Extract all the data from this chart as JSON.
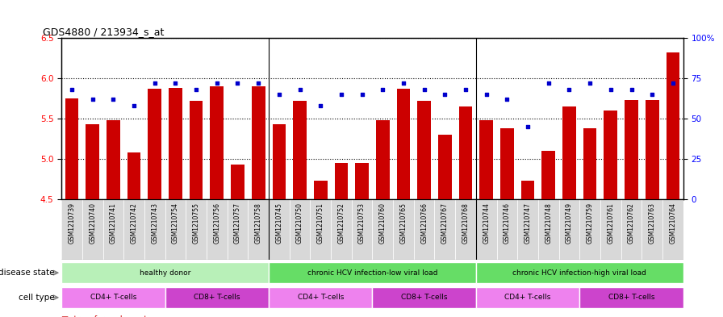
{
  "title": "GDS4880 / 213934_s_at",
  "samples": [
    "GSM1210739",
    "GSM1210740",
    "GSM1210741",
    "GSM1210742",
    "GSM1210743",
    "GSM1210754",
    "GSM1210755",
    "GSM1210756",
    "GSM1210757",
    "GSM1210758",
    "GSM1210745",
    "GSM1210750",
    "GSM1210751",
    "GSM1210752",
    "GSM1210753",
    "GSM1210760",
    "GSM1210765",
    "GSM1210766",
    "GSM1210767",
    "GSM1210768",
    "GSM1210744",
    "GSM1210746",
    "GSM1210747",
    "GSM1210748",
    "GSM1210749",
    "GSM1210759",
    "GSM1210761",
    "GSM1210762",
    "GSM1210763",
    "GSM1210764"
  ],
  "bar_values": [
    5.75,
    5.43,
    5.48,
    5.08,
    5.87,
    5.88,
    5.72,
    5.9,
    4.93,
    5.9,
    5.43,
    5.72,
    4.73,
    4.95,
    4.95,
    5.48,
    5.87,
    5.72,
    5.3,
    5.65,
    5.48,
    5.38,
    4.73,
    5.1,
    5.65,
    5.38,
    5.6,
    5.73,
    5.73,
    6.32
  ],
  "percentile_values": [
    68,
    62,
    62,
    58,
    72,
    72,
    68,
    72,
    72,
    72,
    65,
    68,
    58,
    65,
    65,
    68,
    72,
    68,
    65,
    68,
    65,
    62,
    45,
    72,
    68,
    72,
    68,
    68,
    65,
    72
  ],
  "ylim_left": [
    4.5,
    6.5
  ],
  "ylim_right": [
    0,
    100
  ],
  "yticks_left": [
    4.5,
    5.0,
    5.5,
    6.0,
    6.5
  ],
  "yticks_right": [
    0,
    25,
    50,
    75,
    100
  ],
  "ytick_labels_right": [
    "0",
    "25",
    "50",
    "75",
    "100%"
  ],
  "bar_color": "#cc0000",
  "dot_color": "#0000cc",
  "ds_groups": [
    {
      "label": "healthy donor",
      "start": 0,
      "end": 9,
      "color": "#b3f0b3"
    },
    {
      "label": "chronic HCV infection-low viral load",
      "start": 10,
      "end": 19,
      "color": "#66dd66"
    },
    {
      "label": "chronic HCV infection-high viral load",
      "start": 20,
      "end": 29,
      "color": "#66dd66"
    }
  ],
  "ct_groups": [
    {
      "label": "CD4+ T-cells",
      "start": 0,
      "end": 4,
      "color": "#ee82ee"
    },
    {
      "label": "CD8+ T-cells",
      "start": 5,
      "end": 9,
      "color": "#cc44cc"
    },
    {
      "label": "CD4+ T-cells",
      "start": 10,
      "end": 14,
      "color": "#ee82ee"
    },
    {
      "label": "CD8+ T-cells",
      "start": 15,
      "end": 19,
      "color": "#cc44cc"
    },
    {
      "label": "CD4+ T-cells",
      "start": 20,
      "end": 24,
      "color": "#ee82ee"
    },
    {
      "label": "CD8+ T-cells",
      "start": 25,
      "end": 29,
      "color": "#cc44cc"
    }
  ],
  "xtick_bg": "#d0d0d0",
  "fig_width": 8.96,
  "fig_height": 3.93
}
